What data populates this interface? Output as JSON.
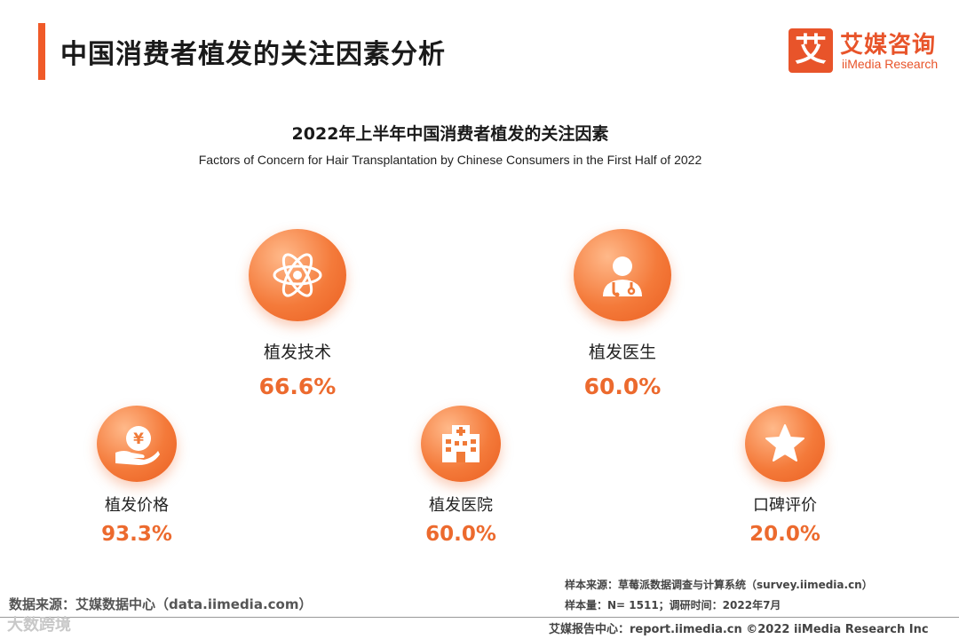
{
  "header": {
    "title": "中国消费者植发的关注因素分析"
  },
  "logo": {
    "mark": "艾",
    "name_cn": "艾媒咨询",
    "name_en": "iiMedia Research"
  },
  "chart_data": {
    "type": "table",
    "title": "2022年上半年中国消费者植发的关注因素",
    "subtitle": "Factors of Concern for Hair Transplantation by Chinese Consumers in  the  First Half of 2022",
    "unit": "%",
    "categories": [
      "植发技术",
      "植发医生",
      "植发价格",
      "植发医院",
      "口碑评价"
    ],
    "values": [
      66.6,
      60.0,
      93.3,
      60.0,
      20.0
    ],
    "items": [
      {
        "label": "植发技术",
        "value_text": "66.6%",
        "icon": "atom-icon"
      },
      {
        "label": "植发医生",
        "value_text": "60.0%",
        "icon": "doctor-icon"
      },
      {
        "label": "植发价格",
        "value_text": "93.3%",
        "icon": "yen-hand-icon"
      },
      {
        "label": "植发医院",
        "value_text": "60.0%",
        "icon": "hospital-icon"
      },
      {
        "label": "口碑评价",
        "value_text": "20.0%",
        "icon": "star-icon"
      }
    ]
  },
  "footer": {
    "data_source": "数据来源：艾媒数据中心（data.iimedia.com）",
    "sample_source": "样本来源：草莓派数据调查与计算系统（survey.iimedia.cn）",
    "sample_size": "样本量：N= 1511；调研时间：2022年7月",
    "report_center": "艾媒报告中心：report.iimedia.cn     ©2022  iiMedia Research  Inc",
    "watermark": "大数跨境"
  },
  "colors": {
    "accent": "#f05a28",
    "value": "#ec6a2e",
    "circle": "#f47a3a"
  }
}
